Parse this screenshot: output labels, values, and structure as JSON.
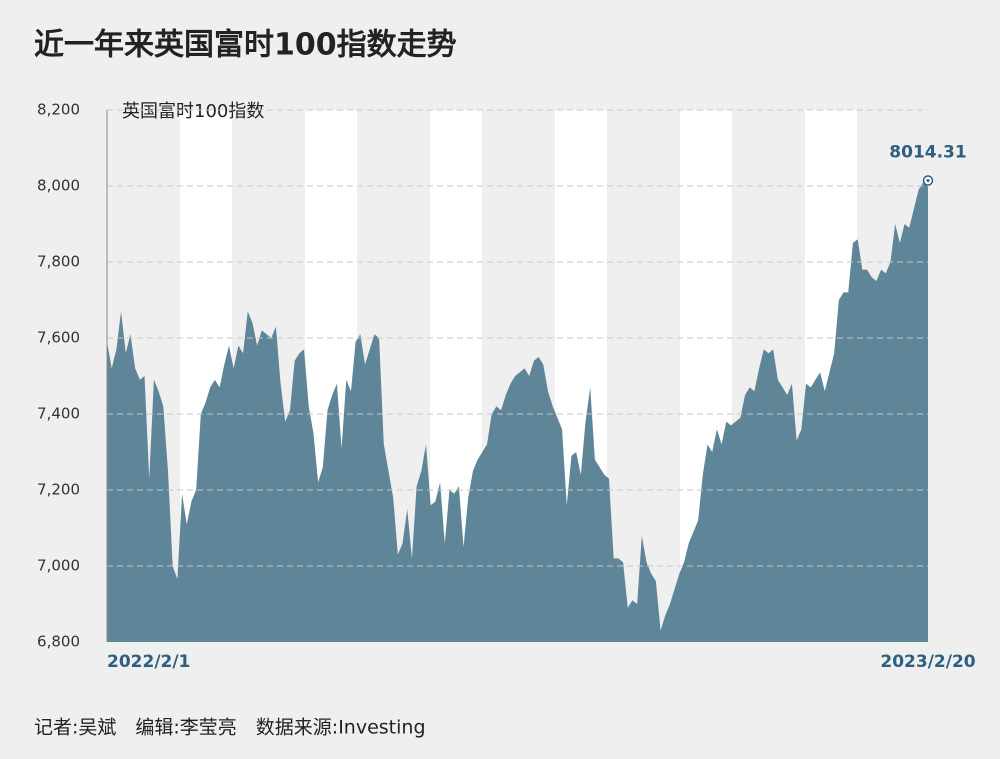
{
  "chart_data": {
    "type": "area",
    "title": "近一年来英国富时100指数走势",
    "footer": "记者:吴斌　编辑:李莹亮　数据来源:Investing",
    "categories": [
      "2022/2/1",
      null,
      null,
      null,
      null,
      null,
      null,
      null,
      null,
      null,
      null,
      null,
      null,
      null,
      null,
      null,
      null,
      null,
      null,
      null,
      null,
      null,
      null,
      null,
      null,
      null,
      null,
      null,
      null,
      null,
      null,
      null,
      null,
      null,
      null,
      null,
      null,
      null,
      null,
      null,
      null,
      null,
      null,
      null,
      null,
      null,
      null,
      null,
      null,
      null,
      null,
      null,
      null,
      null,
      null,
      null,
      null,
      null,
      null,
      null,
      null,
      null,
      null,
      null,
      null,
      null,
      null,
      null,
      null,
      null,
      null,
      null,
      null,
      null,
      null,
      null,
      null,
      null,
      null,
      null,
      null,
      null,
      null,
      null,
      null,
      null,
      null,
      null,
      null,
      null,
      null,
      null,
      null,
      null,
      null,
      null,
      null,
      null,
      null,
      null,
      null,
      null,
      null,
      null,
      null,
      null,
      null,
      null,
      null,
      null,
      null,
      null,
      null,
      null,
      null,
      null,
      null,
      null,
      null,
      null,
      null,
      null,
      null,
      null,
      null,
      null,
      null,
      null,
      null,
      null,
      null,
      null,
      null,
      null,
      null,
      null,
      null,
      null,
      null,
      null,
      null,
      null,
      null,
      null,
      null,
      null,
      null,
      null,
      null,
      null,
      null,
      null,
      null,
      null,
      null,
      null,
      null,
      null,
      null,
      null,
      null,
      null,
      null,
      null,
      null,
      null,
      null,
      null,
      null,
      null,
      null,
      null,
      null,
      null,
      null,
      "2023/2/20"
    ],
    "series": [
      {
        "name": "英国富时100指数",
        "color": "#5f8599",
        "values": [
          7590,
          7520,
          7570,
          7670,
          7560,
          7610,
          7520,
          7490,
          7500,
          7230,
          7490,
          7460,
          7420,
          7250,
          7000,
          6965,
          7190,
          7110,
          7170,
          7200,
          7400,
          7430,
          7470,
          7490,
          7470,
          7530,
          7580,
          7520,
          7580,
          7560,
          7670,
          7640,
          7580,
          7620,
          7610,
          7600,
          7630,
          7480,
          7380,
          7410,
          7540,
          7560,
          7570,
          7420,
          7350,
          7220,
          7260,
          7410,
          7450,
          7480,
          7310,
          7490,
          7460,
          7590,
          7610,
          7530,
          7570,
          7610,
          7600,
          7320,
          7250,
          7180,
          7030,
          7060,
          7150,
          7020,
          7210,
          7250,
          7320,
          7160,
          7170,
          7220,
          7060,
          7200,
          7190,
          7210,
          7050,
          7180,
          7250,
          7280,
          7300,
          7320,
          7400,
          7420,
          7410,
          7450,
          7480,
          7500,
          7510,
          7520,
          7500,
          7540,
          7550,
          7530,
          7460,
          7420,
          7390,
          7360,
          7160,
          7290,
          7300,
          7240,
          7380,
          7470,
          7280,
          7260,
          7240,
          7230,
          7020,
          7020,
          7010,
          6890,
          6910,
          6900,
          7080,
          7010,
          6980,
          6960,
          6830,
          6870,
          6900,
          6940,
          6980,
          7010,
          7060,
          7090,
          7120,
          7240,
          7320,
          7300,
          7360,
          7320,
          7380,
          7370,
          7380,
          7390,
          7450,
          7470,
          7460,
          7520,
          7570,
          7560,
          7570,
          7490,
          7470,
          7450,
          7480,
          7330,
          7360,
          7480,
          7470,
          7490,
          7510,
          7460,
          7510,
          7560,
          7700,
          7720,
          7720,
          7850,
          7860,
          7780,
          7780,
          7760,
          7750,
          7780,
          7770,
          7800,
          7900,
          7850,
          7900,
          7890,
          7940,
          7990,
          8010,
          8014.31
        ]
      }
    ],
    "ylim": [
      6800,
      8200
    ],
    "yticks": [
      {
        "value": 6800,
        "label": "6,800"
      },
      {
        "value": 7000,
        "label": "7,000"
      },
      {
        "value": 7200,
        "label": "7,200"
      },
      {
        "value": 7400,
        "label": "7,400"
      },
      {
        "value": 7600,
        "label": "7,600"
      },
      {
        "value": 7800,
        "label": "7,800"
      },
      {
        "value": 8000,
        "label": "8,000"
      },
      {
        "value": 8200,
        "label": "8,200"
      }
    ],
    "grid": true
  }
}
